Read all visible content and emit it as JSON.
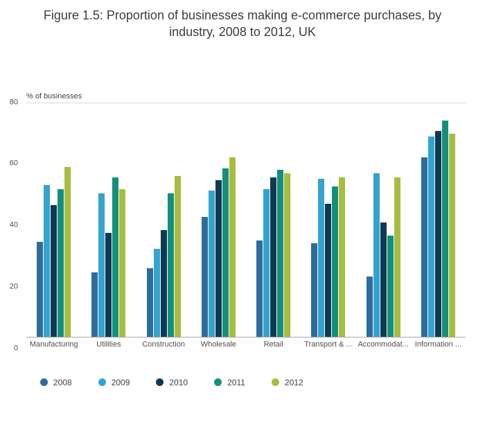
{
  "title": "Figure 1.5: Proportion of businesses making e-commerce purchases, by industry, 2008 to 2012, UK",
  "chart_data": {
    "type": "bar",
    "title": "Figure 1.5: Proportion of businesses making e-commerce purchases, by industry, 2008 to 2012, UK",
    "ylabel": "% of businesses",
    "xlabel": "",
    "ylim": [
      0,
      80
    ],
    "yticks": [
      0,
      20,
      40,
      60,
      80
    ],
    "grid": "top-line-only",
    "legend_position": "bottom-left",
    "categories": [
      "Manufacturing",
      "Utilities",
      "Construction",
      "Wholesale",
      "Retail",
      "Transport & ...",
      "Accommodat...",
      "Information ..."
    ],
    "series": [
      {
        "name": "2008",
        "color": "#2d6d9e",
        "values": [
          32.5,
          22,
          23.5,
          41,
          33,
          32,
          20.5,
          61.5
        ]
      },
      {
        "name": "2009",
        "color": "#34a3cf",
        "values": [
          52,
          49,
          30,
          50,
          50.5,
          54,
          56,
          68.5
        ]
      },
      {
        "name": "2010",
        "color": "#0f3a52",
        "values": [
          45,
          35.5,
          36.5,
          53.5,
          54.5,
          45.5,
          39,
          70.5
        ]
      },
      {
        "name": "2011",
        "color": "#148f7d",
        "values": [
          50.5,
          54.5,
          49,
          57.5,
          57,
          51.5,
          34.5,
          74
        ]
      },
      {
        "name": "2012",
        "color": "#a8bc40",
        "values": [
          58,
          50.5,
          55,
          61.5,
          56,
          54.5,
          54.5,
          69.5
        ]
      }
    ]
  }
}
